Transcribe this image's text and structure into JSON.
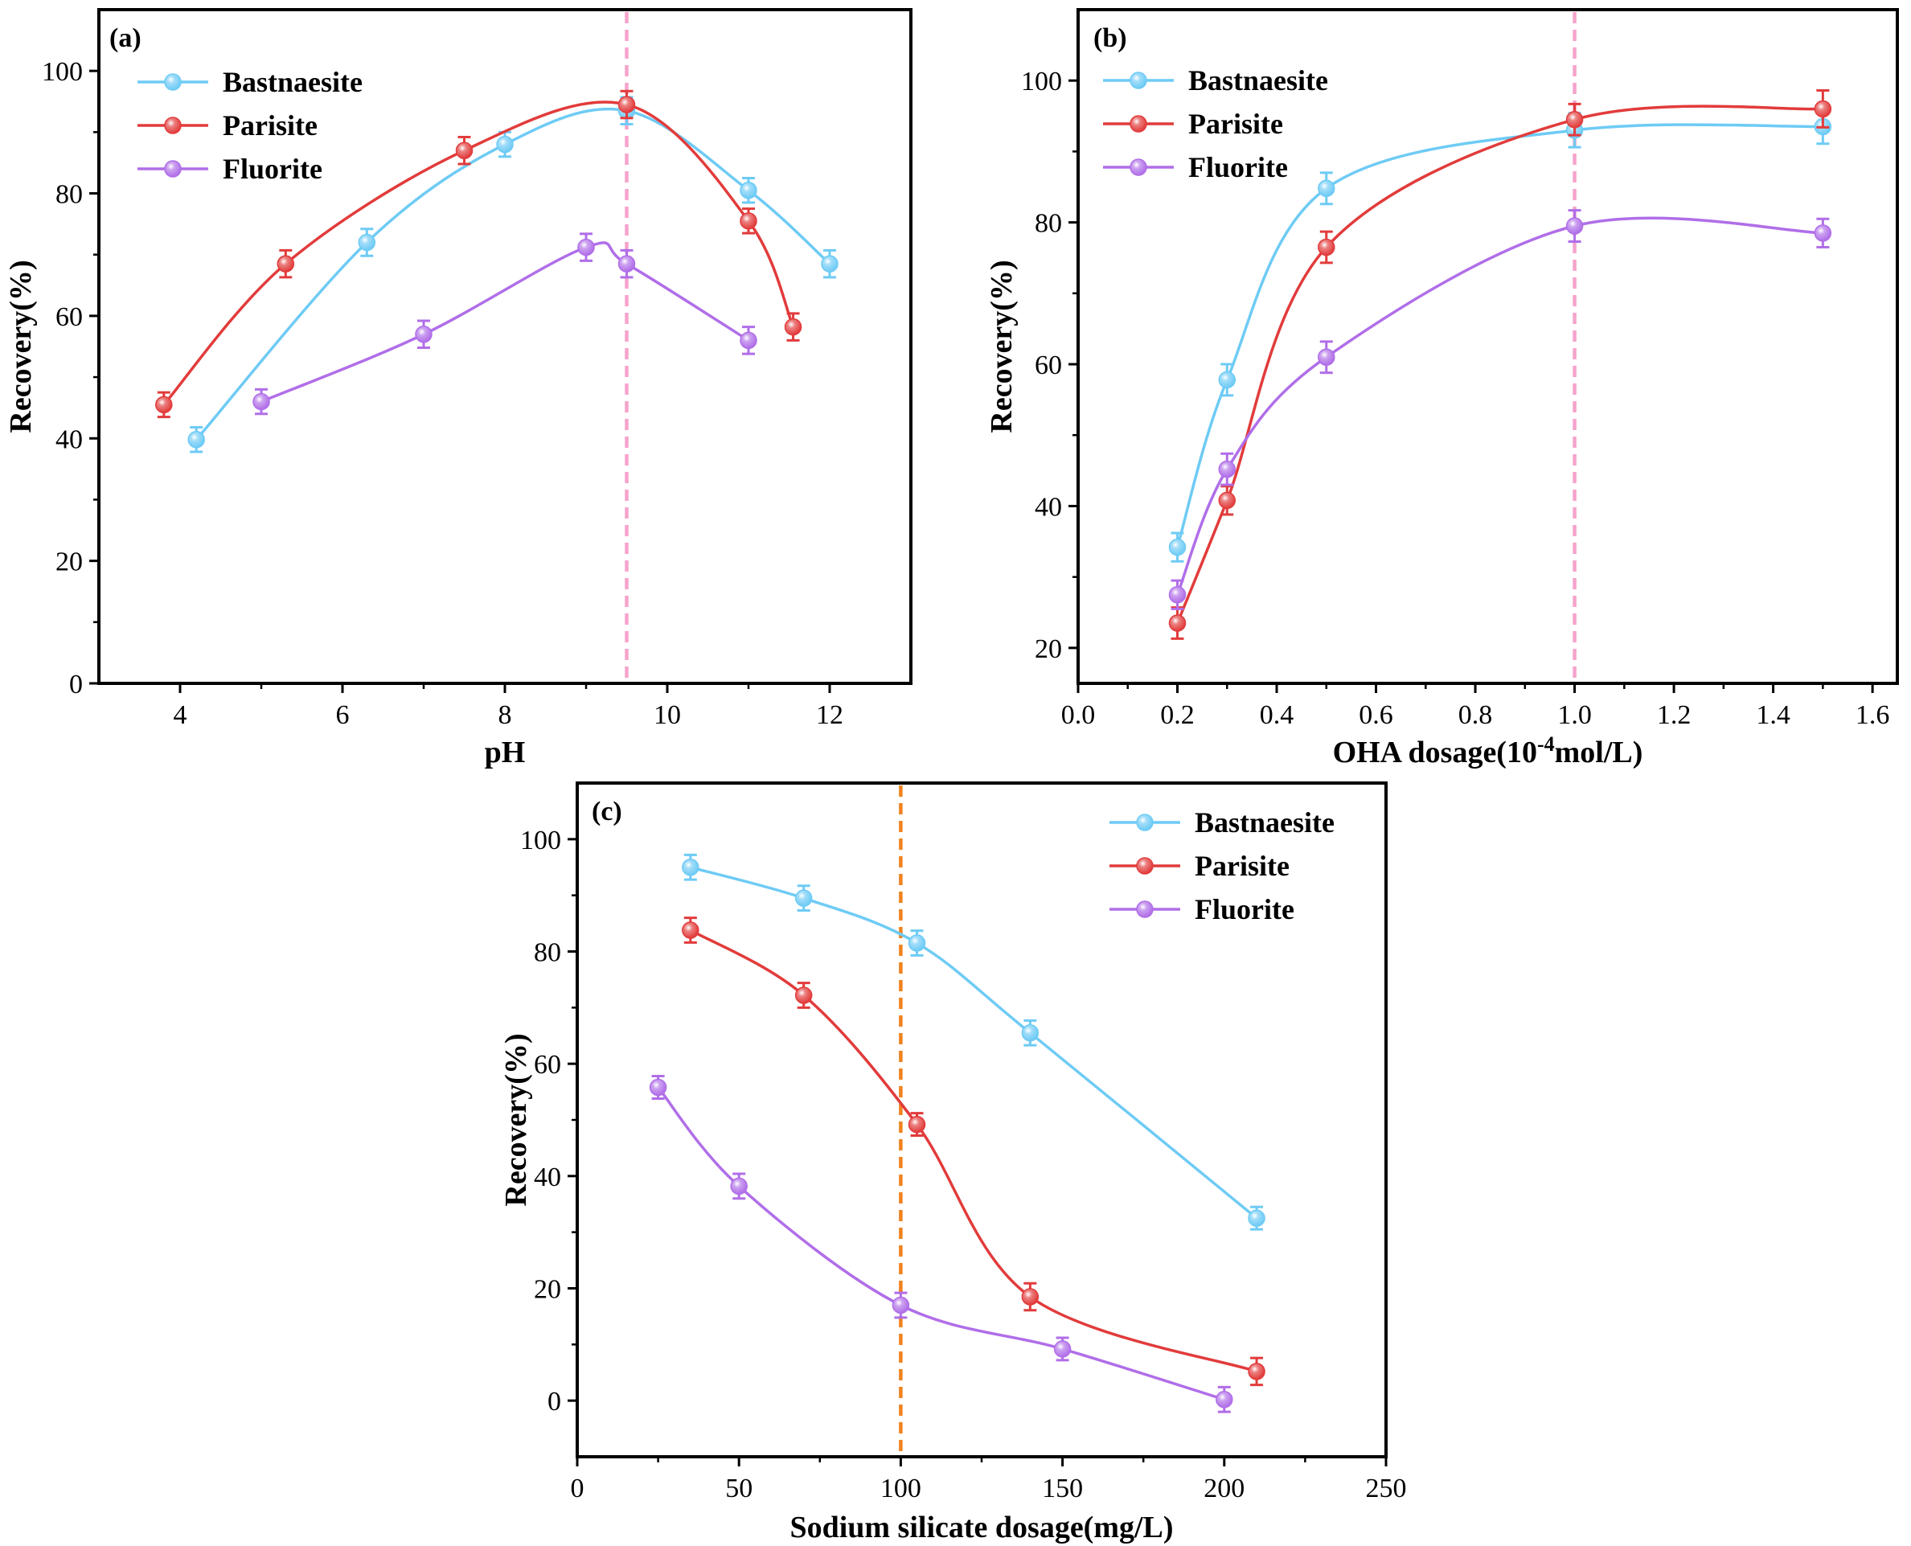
{
  "chart_data": [
    {
      "type": "line",
      "panel": "(a)",
      "title": "",
      "xlabel": "pH",
      "ylabel": "Recovery(%)",
      "xlim": [
        3,
        13
      ],
      "ylim": [
        0,
        110
      ],
      "xticks": [
        4,
        6,
        8,
        10,
        12
      ],
      "yticks": [
        0,
        20,
        40,
        60,
        80,
        100
      ],
      "xtick_labels": [
        "4",
        "6",
        "8",
        "10",
        "12"
      ],
      "ytick_labels": [
        "0",
        "20",
        "40",
        "60",
        "80",
        "100"
      ],
      "reference_line": {
        "x": 9.5,
        "color": "#f5a3cc"
      },
      "legend_position": "top-left",
      "series": [
        {
          "name": "Bastnaesite",
          "color": "#6ecbf5",
          "x": [
            4.2,
            6.3,
            8.0,
            9.5,
            11.0,
            12.0
          ],
          "y": [
            39.8,
            72.0,
            88.0,
            93.5,
            80.5,
            68.5
          ],
          "err": [
            2.0,
            2.2,
            2.0,
            2.2,
            2.0,
            2.2
          ]
        },
        {
          "name": "Parisite",
          "color": "#e23b3b",
          "x": [
            3.8,
            5.3,
            7.5,
            9.5,
            11.0,
            11.55
          ],
          "y": [
            45.5,
            68.5,
            87.0,
            94.5,
            75.5,
            58.2
          ],
          "err": [
            2.0,
            2.2,
            2.2,
            2.2,
            2.0,
            2.2
          ]
        },
        {
          "name": "Fluorite",
          "color": "#b06ee8",
          "x": [
            5.0,
            7.0,
            9.0,
            9.5,
            11.0
          ],
          "y": [
            46.0,
            57.0,
            71.2,
            68.5,
            56.0
          ],
          "err": [
            2.0,
            2.2,
            2.2,
            2.2,
            2.2
          ]
        }
      ]
    },
    {
      "type": "line",
      "panel": "(b)",
      "title": "",
      "xlabel": "OHA dosage(10⁻⁴mol/L)",
      "ylabel": "Recovery(%)",
      "xlim": [
        0,
        1.65
      ],
      "ylim": [
        15,
        110
      ],
      "xticks": [
        0.0,
        0.2,
        0.4,
        0.6,
        0.8,
        1.0,
        1.2,
        1.4,
        1.6
      ],
      "yticks": [
        20,
        40,
        60,
        80,
        100
      ],
      "xtick_labels": [
        "0.0",
        "0.2",
        "0.4",
        "0.6",
        "0.8",
        "1.0",
        "1.2",
        "1.4",
        "1.6"
      ],
      "ytick_labels": [
        "20",
        "40",
        "60",
        "80",
        "100"
      ],
      "reference_line": {
        "x": 1.0,
        "color": "#f5a3cc"
      },
      "legend_position": "top-left",
      "series": [
        {
          "name": "Bastnaesite",
          "color": "#6ecbf5",
          "x": [
            0.2,
            0.3,
            0.5,
            1.0,
            1.5
          ],
          "y": [
            34.2,
            57.8,
            84.8,
            93.0,
            93.5
          ],
          "err": [
            2.0,
            2.2,
            2.2,
            2.4,
            2.4
          ]
        },
        {
          "name": "Parisite",
          "color": "#e23b3b",
          "x": [
            0.2,
            0.3,
            0.5,
            1.0,
            1.5
          ],
          "y": [
            23.5,
            40.8,
            76.5,
            94.5,
            96.0
          ],
          "err": [
            2.2,
            2.0,
            2.2,
            2.2,
            2.6
          ]
        },
        {
          "name": "Fluorite",
          "color": "#b06ee8",
          "x": [
            0.2,
            0.3,
            0.5,
            1.0,
            1.5
          ],
          "y": [
            27.5,
            45.2,
            61.0,
            79.5,
            78.5
          ],
          "err": [
            2.0,
            2.2,
            2.2,
            2.2,
            2.0
          ]
        }
      ]
    },
    {
      "type": "line",
      "panel": "(c)",
      "title": "",
      "xlabel": "Sodium silicate dosage(mg/L)",
      "ylabel": "Recovery(%)",
      "xlim": [
        0,
        250
      ],
      "ylim": [
        -10,
        110
      ],
      "xticks": [
        0,
        50,
        100,
        150,
        200,
        250
      ],
      "yticks": [
        0,
        20,
        40,
        60,
        80,
        100
      ],
      "xtick_labels": [
        "0",
        "50",
        "100",
        "150",
        "200",
        "250"
      ],
      "ytick_labels": [
        "0",
        "20",
        "40",
        "60",
        "80",
        "100"
      ],
      "reference_line": {
        "x": 100,
        "color": "#f0821e"
      },
      "legend_position": "top-right",
      "series": [
        {
          "name": "Bastnaesite",
          "color": "#6ecbf5",
          "x": [
            35,
            70,
            105,
            140,
            210
          ],
          "y": [
            95.0,
            89.5,
            81.5,
            65.5,
            32.5
          ],
          "err": [
            2.2,
            2.2,
            2.2,
            2.2,
            2.0
          ]
        },
        {
          "name": "Parisite",
          "color": "#e23b3b",
          "x": [
            35,
            70,
            105,
            140,
            210
          ],
          "y": [
            83.8,
            72.2,
            49.2,
            18.5,
            5.2
          ],
          "err": [
            2.2,
            2.2,
            2.0,
            2.4,
            2.4
          ]
        },
        {
          "name": "Fluorite",
          "color": "#b06ee8",
          "x": [
            25,
            50,
            100,
            150,
            200
          ],
          "y": [
            55.8,
            38.2,
            17.0,
            9.2,
            0.2
          ],
          "err": [
            2.0,
            2.2,
            2.2,
            2.0,
            2.2
          ]
        }
      ]
    }
  ]
}
